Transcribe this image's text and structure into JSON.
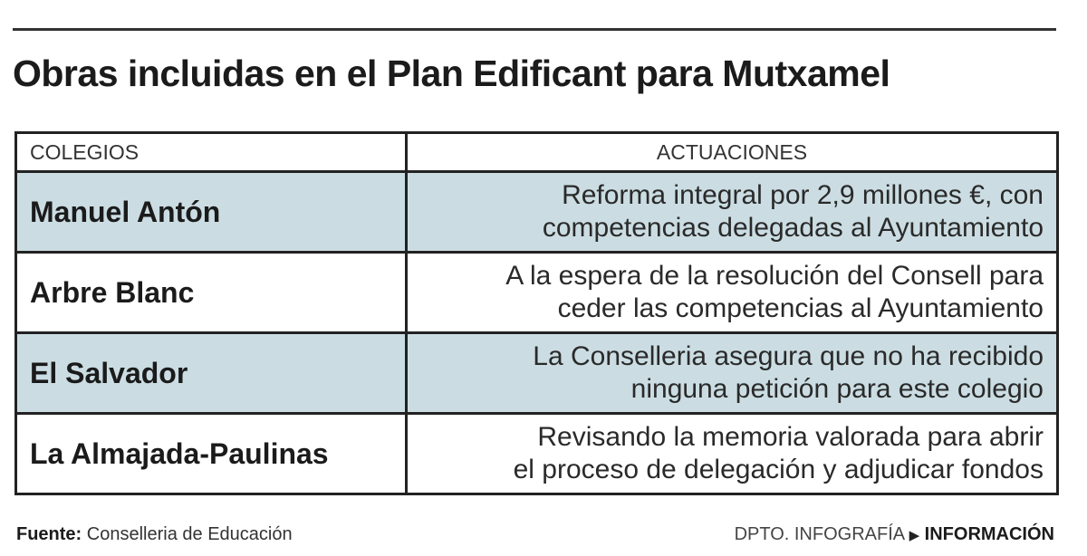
{
  "title": "Obras incluidas en el Plan Edificant para Mutxamel",
  "table": {
    "headers": [
      "COLEGIOS",
      "ACTUACIONES"
    ],
    "rows": [
      {
        "colegio": "Manuel Antón",
        "actuacion_1": "Reforma integral por 2,9 millones €, con",
        "actuacion_2": "competencias delegadas al Ayuntamiento"
      },
      {
        "colegio": "Arbre Blanc",
        "actuacion_1": "A la espera de la resolución del Consell para",
        "actuacion_2": "ceder las competencias al Ayuntamiento"
      },
      {
        "colegio": "El Salvador",
        "actuacion_1": "La Conselleria asegura que no ha recibido",
        "actuacion_2": "ninguna petición para este colegio"
      },
      {
        "colegio": "La Almajada-Paulinas",
        "actuacion_1": "Revisando la memoria valorada para abrir",
        "actuacion_2": "el proceso de delegación y adjudicar fondos"
      }
    ]
  },
  "footer": {
    "source_label": "Fuente:",
    "source": "Conselleria de Educación",
    "credit_dept": "DPTO. INFOGRAFÍA",
    "credit_arrow": "▶",
    "credit_paper": "INFORMACIÓN"
  },
  "colors": {
    "shaded_row": "#cbdde3",
    "border": "#222222"
  }
}
